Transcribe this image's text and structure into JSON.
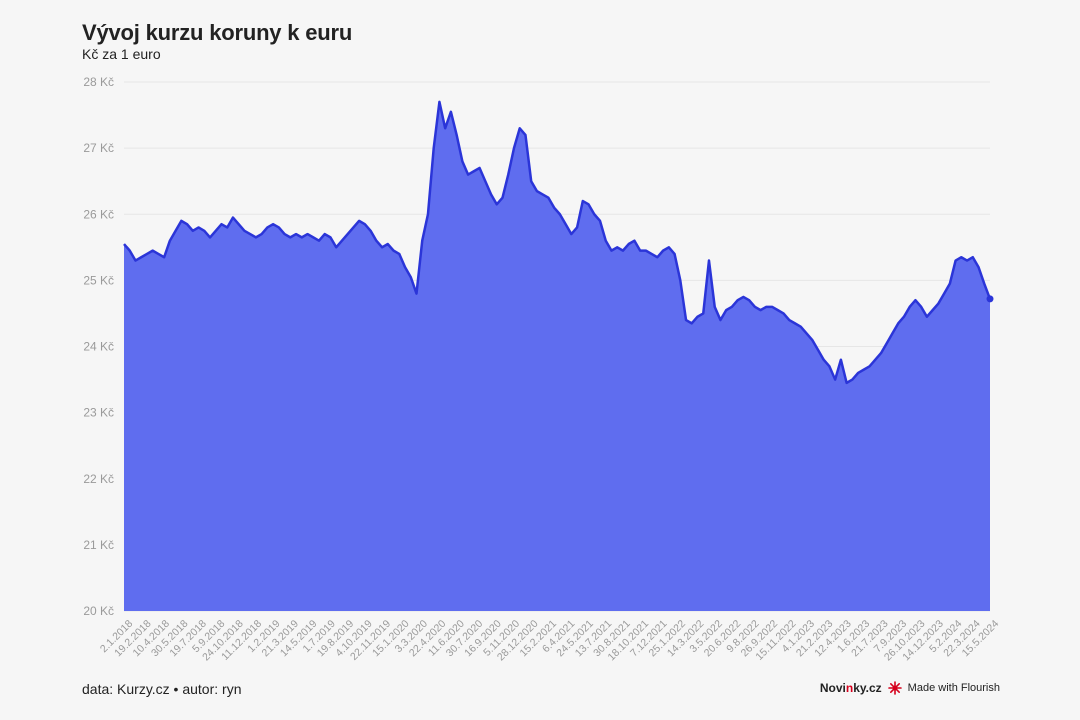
{
  "title": "Vývoj kurzu koruny k euru",
  "subtitle": "Kč za 1 euro",
  "footer": {
    "source": "data: Kurzy.cz • autor: ryn",
    "brand_left": "Novi",
    "brand_accent": "n",
    "brand_right": "ky.cz",
    "made_with": "Made with Flourish"
  },
  "colors": {
    "area_fill": "#5f6def",
    "line": "#2b35d8",
    "grid": "#e6e6e6",
    "tick_text": "#9a9a9a",
    "brand_accent": "#d5001c"
  },
  "chart_data": {
    "type": "area",
    "title": "Vývoj kurzu koruny k euru",
    "subtitle": "Kč za 1 euro",
    "xlabel": "",
    "ylabel": "",
    "ylim": [
      20,
      28
    ],
    "grid": true,
    "y_ticks": [
      20,
      21,
      22,
      23,
      24,
      25,
      26,
      27,
      28
    ],
    "y_tick_suffix": " Kč",
    "x_tick_labels": [
      "2.1.2018",
      "19.2.2018",
      "10.4.2018",
      "30.5.2018",
      "19.7.2018",
      "5.9.2018",
      "24.10.2018",
      "11.12.2018",
      "1.2.2019",
      "21.3.2019",
      "14.5.2019",
      "1.7.2019",
      "19.8.2019",
      "4.10.2019",
      "22.11.2019",
      "15.1.2020",
      "3.3.2020",
      "22.4.2020",
      "11.6.2020",
      "30.7.2020",
      "16.9.2020",
      "5.11.2020",
      "28.12.2020",
      "15.2.2021",
      "6.4.2021",
      "24.5.2021",
      "13.7.2021",
      "30.8.2021",
      "18.10.2021",
      "7.12.2021",
      "25.1.2022",
      "14.3.2022",
      "3.5.2022",
      "20.6.2022",
      "9.8.2022",
      "26.9.2022",
      "15.11.2022",
      "4.1.2023",
      "21.2.2023",
      "12.4.2023",
      "1.6.2023",
      "21.7.2023",
      "7.9.2023",
      "26.10.2023",
      "14.12.2023",
      "5.2.2024",
      "22.3.2024",
      "15.5.2024"
    ],
    "series": [
      {
        "values": [
          25.55,
          25.45,
          25.3,
          25.35,
          25.4,
          25.45,
          25.4,
          25.35,
          25.6,
          25.75,
          25.9,
          25.85,
          25.75,
          25.8,
          25.75,
          25.65,
          25.75,
          25.85,
          25.8,
          25.95,
          25.85,
          25.75,
          25.7,
          25.65,
          25.7,
          25.8,
          25.85,
          25.8,
          25.7,
          25.65,
          25.7,
          25.65,
          25.7,
          25.65,
          25.6,
          25.7,
          25.65,
          25.5,
          25.6,
          25.7,
          25.8,
          25.9,
          25.85,
          25.75,
          25.6,
          25.5,
          25.55,
          25.45,
          25.4,
          25.2,
          25.05,
          24.8,
          25.6,
          26.0,
          27.0,
          27.7,
          27.3,
          27.55,
          27.2,
          26.8,
          26.6,
          26.65,
          26.7,
          26.5,
          26.3,
          26.15,
          26.25,
          26.6,
          27.0,
          27.3,
          27.2,
          26.5,
          26.35,
          26.3,
          26.25,
          26.1,
          26.0,
          25.85,
          25.7,
          25.8,
          26.2,
          26.15,
          26.0,
          25.9,
          25.6,
          25.45,
          25.5,
          25.45,
          25.55,
          25.6,
          25.45,
          25.45,
          25.4,
          25.35,
          25.45,
          25.5,
          25.4,
          25.0,
          24.4,
          24.35,
          24.45,
          24.5,
          25.3,
          24.6,
          24.4,
          24.55,
          24.6,
          24.7,
          24.75,
          24.7,
          24.6,
          24.55,
          24.6,
          24.6,
          24.55,
          24.5,
          24.4,
          24.35,
          24.3,
          24.2,
          24.1,
          23.95,
          23.8,
          23.7,
          23.5,
          23.8,
          23.45,
          23.5,
          23.6,
          23.65,
          23.7,
          23.8,
          23.9,
          24.05,
          24.2,
          24.35,
          24.45,
          24.6,
          24.7,
          24.6,
          24.45,
          24.55,
          24.65,
          24.8,
          24.95,
          25.3,
          25.35,
          25.3,
          25.35,
          25.2,
          24.95,
          24.72
        ]
      }
    ]
  }
}
